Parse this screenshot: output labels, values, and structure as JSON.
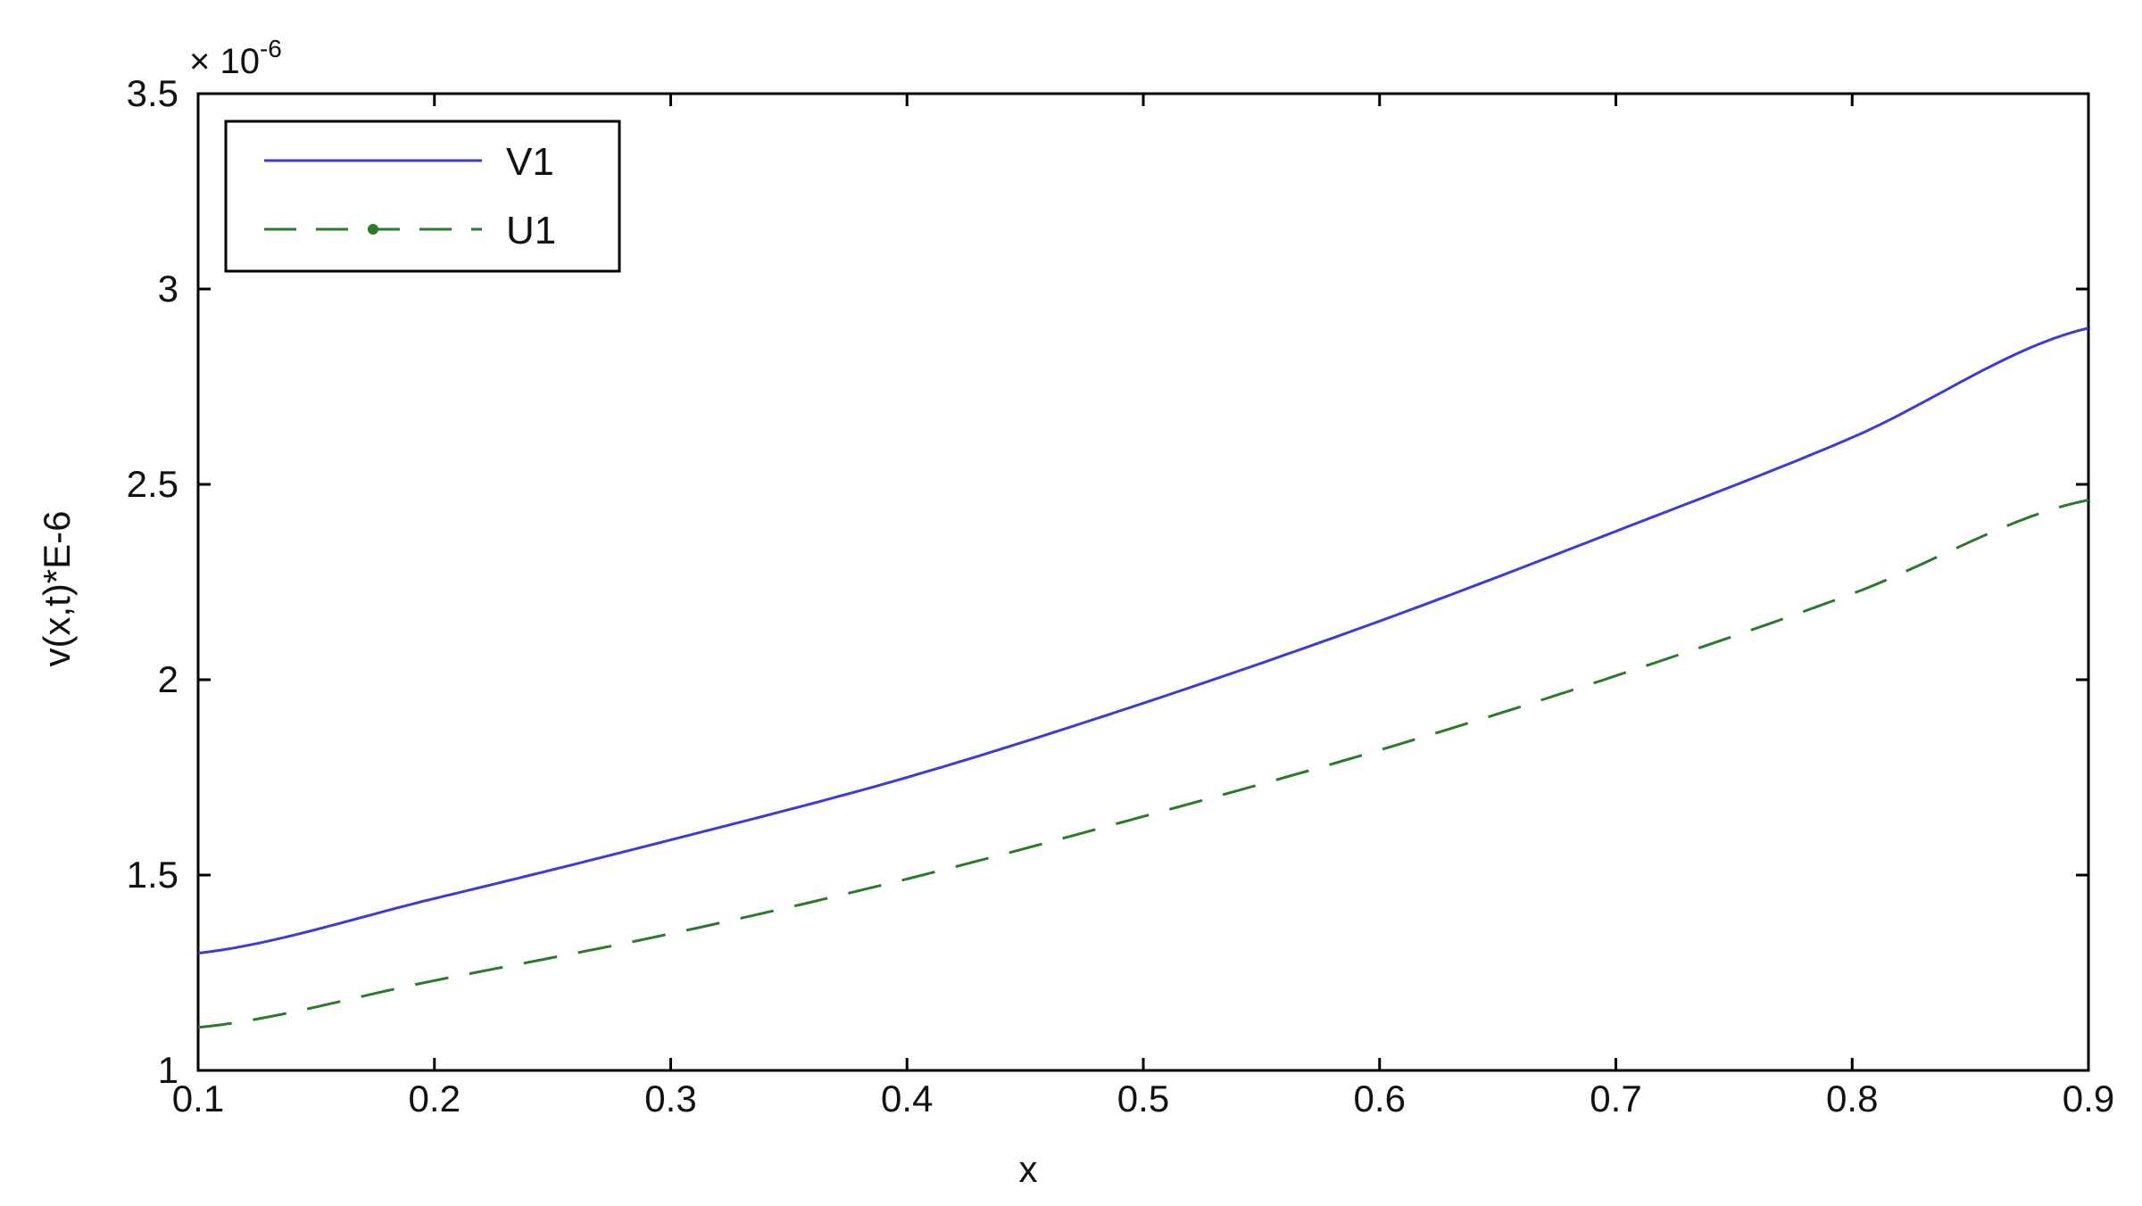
{
  "chart_data": {
    "type": "line",
    "title": "",
    "xlabel": "x",
    "ylabel": "v(x,t)*E-6",
    "y_multiplier_label": "× 10",
    "y_multiplier_exponent": "-6",
    "xlim": [
      0.1,
      0.9
    ],
    "ylim": [
      1,
      3.5
    ],
    "x_ticks": [
      "0.1",
      "0.2",
      "0.3",
      "0.4",
      "0.5",
      "0.6",
      "0.7",
      "0.8",
      "0.9"
    ],
    "y_ticks": [
      "1",
      "1.5",
      "2",
      "2.5",
      "3",
      "3.5"
    ],
    "grid": false,
    "legend_position": "top-left",
    "x": [
      0.1,
      0.2,
      0.3,
      0.4,
      0.5,
      0.6,
      0.7,
      0.8,
      0.9
    ],
    "series": [
      {
        "name": "V1",
        "color": "#3b3bdc",
        "style": "solid",
        "values": [
          1.3,
          1.44,
          1.59,
          1.75,
          1.94,
          2.15,
          2.38,
          2.62,
          2.9
        ]
      },
      {
        "name": "U1",
        "color": "#2a7a2a",
        "style": "dashed",
        "values": [
          1.11,
          1.23,
          1.35,
          1.49,
          1.65,
          1.82,
          2.01,
          2.22,
          2.46
        ]
      }
    ]
  }
}
